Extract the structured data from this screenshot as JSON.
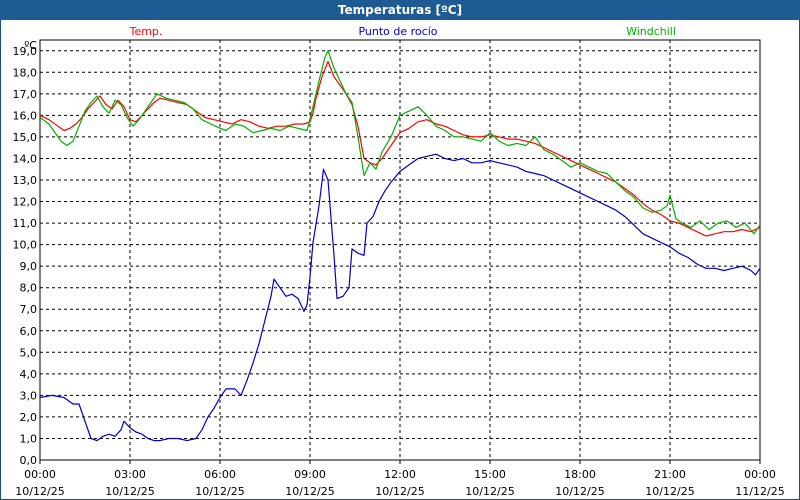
{
  "title": "Temperaturas [ºC]",
  "colors": {
    "title_bg": "#1e5b94",
    "temp": "#ff0000",
    "dew": "#0000cc",
    "windchill": "#00b000",
    "grid": "#000000"
  },
  "chart_data": {
    "type": "line",
    "title": "Temperaturas [ºC]",
    "unit_label": "ºC",
    "xlim": [
      0,
      24
    ],
    "ylim": [
      0,
      19.5
    ],
    "y_ticks": [
      0,
      1,
      2,
      3,
      4,
      5,
      6,
      7,
      8,
      9,
      10,
      11,
      12,
      13,
      14,
      15,
      16,
      17,
      18,
      19
    ],
    "y_tick_labels": [
      "0,0",
      "1,0",
      "2,0",
      "3,0",
      "4,0",
      "5,0",
      "6,0",
      "7,0",
      "8,0",
      "9,0",
      "10,0",
      "11,0",
      "12,0",
      "13,0",
      "14,0",
      "15,0",
      "16,0",
      "17,0",
      "18,0",
      "19,0"
    ],
    "x_ticks": [
      0,
      3,
      6,
      9,
      12,
      15,
      18,
      21,
      24
    ],
    "x_tick_labels": [
      [
        "00:00",
        "10/12/25"
      ],
      [
        "03:00",
        "10/12/25"
      ],
      [
        "06:00",
        "10/12/25"
      ],
      [
        "09:00",
        "10/12/25"
      ],
      [
        "12:00",
        "10/12/25"
      ],
      [
        "15:00",
        "10/12/25"
      ],
      [
        "18:00",
        "10/12/25"
      ],
      [
        "21:00",
        "10/12/25"
      ],
      [
        "00:00",
        "11/12/25"
      ]
    ],
    "grid": true,
    "legend_position": "top",
    "series": [
      {
        "name": "Temp.",
        "color": "#ff0000",
        "points": [
          [
            0,
            16.0
          ],
          [
            0.3,
            15.8
          ],
          [
            0.6,
            15.5
          ],
          [
            0.8,
            15.3
          ],
          [
            1.0,
            15.4
          ],
          [
            1.2,
            15.6
          ],
          [
            1.4,
            15.9
          ],
          [
            1.6,
            16.3
          ],
          [
            1.8,
            16.6
          ],
          [
            2.0,
            16.9
          ],
          [
            2.2,
            16.5
          ],
          [
            2.4,
            16.3
          ],
          [
            2.6,
            16.7
          ],
          [
            2.8,
            16.4
          ],
          [
            3.0,
            15.8
          ],
          [
            3.2,
            15.7
          ],
          [
            3.4,
            16.0
          ],
          [
            3.6,
            16.3
          ],
          [
            3.8,
            16.6
          ],
          [
            4.0,
            16.8
          ],
          [
            4.3,
            16.7
          ],
          [
            4.6,
            16.6
          ],
          [
            4.9,
            16.5
          ],
          [
            5.2,
            16.2
          ],
          [
            5.5,
            15.9
          ],
          [
            5.8,
            15.8
          ],
          [
            6.1,
            15.7
          ],
          [
            6.4,
            15.6
          ],
          [
            6.7,
            15.8
          ],
          [
            7.0,
            15.7
          ],
          [
            7.3,
            15.5
          ],
          [
            7.6,
            15.4
          ],
          [
            7.9,
            15.5
          ],
          [
            8.2,
            15.5
          ],
          [
            8.5,
            15.6
          ],
          [
            8.8,
            15.6
          ],
          [
            9.0,
            15.7
          ],
          [
            9.1,
            16.1
          ],
          [
            9.2,
            16.8
          ],
          [
            9.4,
            17.8
          ],
          [
            9.6,
            18.5
          ],
          [
            9.8,
            17.8
          ],
          [
            10.0,
            17.4
          ],
          [
            10.2,
            17.0
          ],
          [
            10.4,
            16.5
          ],
          [
            10.6,
            15.5
          ],
          [
            10.8,
            14.0
          ],
          [
            11.0,
            13.8
          ],
          [
            11.2,
            13.7
          ],
          [
            11.4,
            14.0
          ],
          [
            11.7,
            14.6
          ],
          [
            12.0,
            15.2
          ],
          [
            12.3,
            15.4
          ],
          [
            12.6,
            15.7
          ],
          [
            12.9,
            15.8
          ],
          [
            13.2,
            15.6
          ],
          [
            13.5,
            15.5
          ],
          [
            13.8,
            15.3
          ],
          [
            14.1,
            15.1
          ],
          [
            14.4,
            15.0
          ],
          [
            14.7,
            15.0
          ],
          [
            15.0,
            15.1
          ],
          [
            15.3,
            15.0
          ],
          [
            15.6,
            14.9
          ],
          [
            15.9,
            14.9
          ],
          [
            16.2,
            14.8
          ],
          [
            16.5,
            14.7
          ],
          [
            16.8,
            14.5
          ],
          [
            17.1,
            14.3
          ],
          [
            17.4,
            14.1
          ],
          [
            17.7,
            13.9
          ],
          [
            18.0,
            13.7
          ],
          [
            18.3,
            13.5
          ],
          [
            18.6,
            13.3
          ],
          [
            18.9,
            13.1
          ],
          [
            19.2,
            12.9
          ],
          [
            19.5,
            12.6
          ],
          [
            19.8,
            12.3
          ],
          [
            20.1,
            11.9
          ],
          [
            20.4,
            11.6
          ],
          [
            20.7,
            11.4
          ],
          [
            21.0,
            11.1
          ],
          [
            21.3,
            11.0
          ],
          [
            21.6,
            10.8
          ],
          [
            21.9,
            10.6
          ],
          [
            22.2,
            10.4
          ],
          [
            22.5,
            10.5
          ],
          [
            22.8,
            10.6
          ],
          [
            23.1,
            10.6
          ],
          [
            23.4,
            10.7
          ],
          [
            23.7,
            10.6
          ],
          [
            24.0,
            10.8
          ]
        ]
      },
      {
        "name": "Punto de rocío",
        "color": "#0000cc",
        "points": [
          [
            0,
            2.9
          ],
          [
            0.4,
            3.0
          ],
          [
            0.8,
            2.9
          ],
          [
            1.1,
            2.6
          ],
          [
            1.3,
            2.6
          ],
          [
            1.5,
            1.8
          ],
          [
            1.7,
            1.0
          ],
          [
            1.9,
            0.9
          ],
          [
            2.1,
            1.1
          ],
          [
            2.3,
            1.2
          ],
          [
            2.5,
            1.1
          ],
          [
            2.7,
            1.4
          ],
          [
            2.8,
            1.8
          ],
          [
            3.0,
            1.5
          ],
          [
            3.2,
            1.3
          ],
          [
            3.4,
            1.2
          ],
          [
            3.6,
            1.0
          ],
          [
            3.8,
            0.9
          ],
          [
            4.0,
            0.9
          ],
          [
            4.3,
            1.0
          ],
          [
            4.6,
            1.0
          ],
          [
            4.9,
            0.9
          ],
          [
            5.2,
            1.0
          ],
          [
            5.4,
            1.4
          ],
          [
            5.6,
            2.0
          ],
          [
            5.8,
            2.4
          ],
          [
            6.0,
            2.9
          ],
          [
            6.2,
            3.3
          ],
          [
            6.5,
            3.3
          ],
          [
            6.7,
            3.0
          ],
          [
            6.9,
            3.7
          ],
          [
            7.1,
            4.5
          ],
          [
            7.3,
            5.4
          ],
          [
            7.5,
            6.5
          ],
          [
            7.7,
            7.6
          ],
          [
            7.8,
            8.4
          ],
          [
            8.0,
            8.0
          ],
          [
            8.2,
            7.6
          ],
          [
            8.4,
            7.7
          ],
          [
            8.6,
            7.5
          ],
          [
            8.8,
            6.9
          ],
          [
            8.9,
            7.2
          ],
          [
            9.0,
            8.5
          ],
          [
            9.1,
            10.1
          ],
          [
            9.3,
            11.8
          ],
          [
            9.45,
            13.5
          ],
          [
            9.6,
            13.0
          ],
          [
            9.8,
            9.5
          ],
          [
            9.9,
            7.5
          ],
          [
            10.1,
            7.6
          ],
          [
            10.3,
            8.0
          ],
          [
            10.4,
            9.8
          ],
          [
            10.6,
            9.6
          ],
          [
            10.8,
            9.5
          ],
          [
            10.9,
            11.0
          ],
          [
            11.1,
            11.3
          ],
          [
            11.3,
            12.0
          ],
          [
            11.5,
            12.5
          ],
          [
            11.7,
            12.9
          ],
          [
            12.0,
            13.4
          ],
          [
            12.3,
            13.7
          ],
          [
            12.6,
            14.0
          ],
          [
            12.9,
            14.1
          ],
          [
            13.2,
            14.2
          ],
          [
            13.5,
            14.0
          ],
          [
            13.8,
            13.9
          ],
          [
            14.1,
            14.0
          ],
          [
            14.4,
            13.8
          ],
          [
            14.7,
            13.8
          ],
          [
            15.0,
            13.9
          ],
          [
            15.3,
            13.8
          ],
          [
            15.6,
            13.7
          ],
          [
            15.9,
            13.6
          ],
          [
            16.2,
            13.4
          ],
          [
            16.5,
            13.3
          ],
          [
            16.8,
            13.2
          ],
          [
            17.1,
            13.0
          ],
          [
            17.4,
            12.8
          ],
          [
            17.7,
            12.6
          ],
          [
            18.0,
            12.4
          ],
          [
            18.3,
            12.2
          ],
          [
            18.6,
            12.0
          ],
          [
            18.9,
            11.8
          ],
          [
            19.2,
            11.6
          ],
          [
            19.5,
            11.3
          ],
          [
            19.8,
            10.9
          ],
          [
            20.1,
            10.5
          ],
          [
            20.4,
            10.3
          ],
          [
            20.7,
            10.1
          ],
          [
            21.0,
            9.9
          ],
          [
            21.3,
            9.6
          ],
          [
            21.6,
            9.4
          ],
          [
            21.9,
            9.1
          ],
          [
            22.2,
            8.9
          ],
          [
            22.5,
            8.9
          ],
          [
            22.8,
            8.8
          ],
          [
            23.1,
            8.9
          ],
          [
            23.4,
            9.0
          ],
          [
            23.7,
            8.8
          ],
          [
            23.85,
            8.6
          ],
          [
            24.0,
            8.9
          ]
        ]
      },
      {
        "name": "Windchill",
        "color": "#00b000",
        "points": [
          [
            0,
            15.9
          ],
          [
            0.3,
            15.6
          ],
          [
            0.5,
            15.2
          ],
          [
            0.7,
            14.8
          ],
          [
            0.9,
            14.6
          ],
          [
            1.1,
            14.8
          ],
          [
            1.3,
            15.5
          ],
          [
            1.5,
            16.2
          ],
          [
            1.7,
            16.6
          ],
          [
            1.9,
            16.9
          ],
          [
            2.1,
            16.4
          ],
          [
            2.3,
            16.1
          ],
          [
            2.5,
            16.7
          ],
          [
            2.7,
            16.5
          ],
          [
            2.9,
            15.9
          ],
          [
            3.1,
            15.5
          ],
          [
            3.3,
            15.8
          ],
          [
            3.5,
            16.2
          ],
          [
            3.7,
            16.6
          ],
          [
            3.9,
            17.0
          ],
          [
            4.2,
            16.8
          ],
          [
            4.5,
            16.7
          ],
          [
            4.8,
            16.6
          ],
          [
            5.1,
            16.3
          ],
          [
            5.4,
            15.8
          ],
          [
            5.7,
            15.6
          ],
          [
            6.0,
            15.4
          ],
          [
            6.2,
            15.3
          ],
          [
            6.5,
            15.6
          ],
          [
            6.8,
            15.5
          ],
          [
            7.1,
            15.2
          ],
          [
            7.4,
            15.3
          ],
          [
            7.7,
            15.4
          ],
          [
            8.0,
            15.3
          ],
          [
            8.3,
            15.5
          ],
          [
            8.6,
            15.4
          ],
          [
            8.9,
            15.3
          ],
          [
            9.1,
            16.4
          ],
          [
            9.3,
            17.6
          ],
          [
            9.5,
            18.7
          ],
          [
            9.6,
            19.0
          ],
          [
            9.8,
            18.2
          ],
          [
            10.0,
            17.6
          ],
          [
            10.2,
            17.0
          ],
          [
            10.4,
            16.6
          ],
          [
            10.6,
            15.0
          ],
          [
            10.8,
            13.2
          ],
          [
            11.0,
            13.8
          ],
          [
            11.2,
            13.5
          ],
          [
            11.4,
            14.3
          ],
          [
            11.7,
            15.0
          ],
          [
            12.0,
            16.0
          ],
          [
            12.3,
            16.2
          ],
          [
            12.6,
            16.4
          ],
          [
            12.9,
            16.0
          ],
          [
            13.2,
            15.5
          ],
          [
            13.5,
            15.3
          ],
          [
            13.8,
            15.0
          ],
          [
            14.1,
            15.0
          ],
          [
            14.4,
            14.9
          ],
          [
            14.7,
            14.8
          ],
          [
            15.0,
            15.2
          ],
          [
            15.3,
            14.8
          ],
          [
            15.6,
            14.6
          ],
          [
            15.9,
            14.7
          ],
          [
            16.2,
            14.6
          ],
          [
            16.5,
            15.0
          ],
          [
            16.8,
            14.4
          ],
          [
            17.1,
            14.2
          ],
          [
            17.4,
            13.9
          ],
          [
            17.7,
            13.6
          ],
          [
            18.0,
            13.8
          ],
          [
            18.3,
            13.6
          ],
          [
            18.6,
            13.4
          ],
          [
            18.9,
            13.3
          ],
          [
            19.2,
            12.9
          ],
          [
            19.5,
            12.5
          ],
          [
            19.8,
            12.2
          ],
          [
            20.1,
            11.7
          ],
          [
            20.4,
            11.5
          ],
          [
            20.7,
            11.6
          ],
          [
            20.9,
            11.8
          ],
          [
            21.0,
            12.3
          ],
          [
            21.2,
            11.2
          ],
          [
            21.4,
            11.0
          ],
          [
            21.7,
            10.8
          ],
          [
            22.0,
            11.1
          ],
          [
            22.3,
            10.7
          ],
          [
            22.6,
            11.0
          ],
          [
            22.9,
            11.1
          ],
          [
            23.2,
            10.8
          ],
          [
            23.5,
            11.0
          ],
          [
            23.8,
            10.5
          ],
          [
            24.0,
            10.9
          ]
        ]
      }
    ]
  }
}
